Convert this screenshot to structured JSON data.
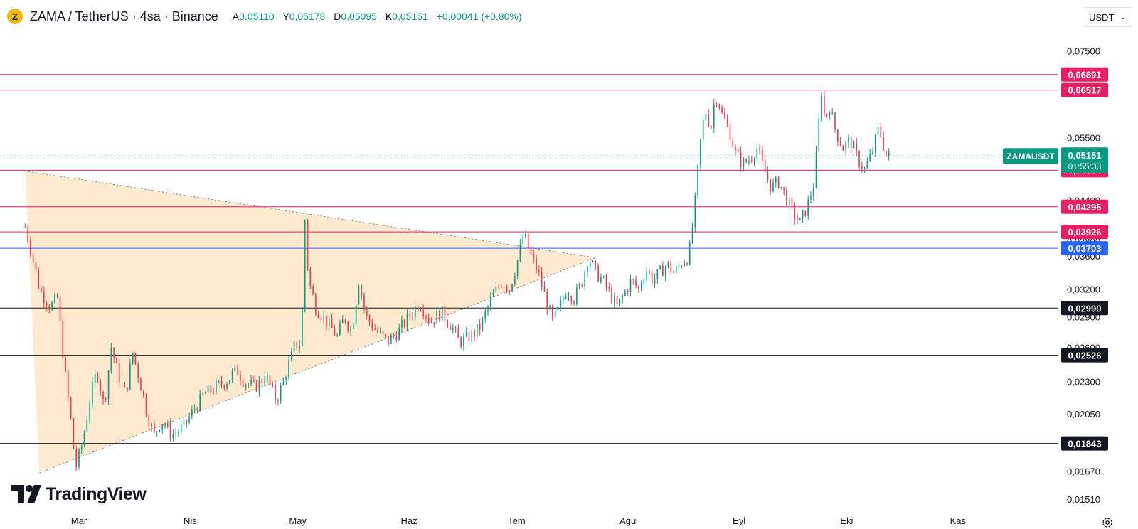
{
  "header": {
    "coin_icon": "Z",
    "title": "ZAMA / TetherUS · 4sa · Binance",
    "ohlc": [
      {
        "label": "A",
        "value": "0,05110"
      },
      {
        "label": "Y",
        "value": "0,05178"
      },
      {
        "label": "D",
        "value": "0,05095"
      },
      {
        "label": "K",
        "value": "0,05151"
      }
    ],
    "change": "+0,00041 (+0,80%)",
    "up_color": "#089981"
  },
  "currency_selector": {
    "value": "USDT",
    "icon": "chevron-down-icon"
  },
  "logo": {
    "text": "TradingView",
    "icon": "tradingview-logo-icon"
  },
  "settings": {
    "icon": "settings-gear-icon"
  },
  "chart_data": {
    "type": "candlestick",
    "symbol": "ZAMAUSDT",
    "interval": "4sa",
    "y_scale": "log",
    "ylim": [
      0.0148,
      0.08
    ],
    "y_ticks": [
      "0,07500",
      "0,05500",
      "0,04400",
      "0,03800",
      "0,03600",
      "0,03200",
      "0,02900",
      "0,02600",
      "0,02300",
      "0,02050",
      "0,01670",
      "0,01510"
    ],
    "x_ticks": [
      "Mar",
      "Nis",
      "May",
      "Haz",
      "Tem",
      "Ağu",
      "Eyl",
      "Eki",
      "Kas"
    ],
    "x_tick_dates": [
      "2026-03-01",
      "2026-04-01",
      "2026-05-01",
      "2026-06-01",
      "2026-07-01",
      "2026-08-01",
      "2026-09-01",
      "2026-10-01",
      "2026-11-01"
    ],
    "x_range": [
      "2026-02-07",
      "2026-11-29"
    ],
    "current_price": {
      "label": "ZAMAUSDT",
      "value": "0,05151",
      "countdown": "01:55:33",
      "price": 0.05151,
      "color": "#089981"
    },
    "horizontal_levels": [
      {
        "value": "0,06891",
        "price": 0.06891,
        "color": "#e91e63"
      },
      {
        "value": "0,06517",
        "price": 0.06517,
        "color": "#e91e63"
      },
      {
        "value": "0,04894",
        "price": 0.04894,
        "color": "#e91e63"
      },
      {
        "value": "0,04295",
        "price": 0.04295,
        "color": "#e91e63"
      },
      {
        "value": "0,03926",
        "price": 0.03926,
        "color": "#e91e63"
      },
      {
        "value": "0,03703",
        "price": 0.03703,
        "color": "#2962ff"
      },
      {
        "value": "0,02990",
        "price": 0.0299,
        "color": "#131722"
      },
      {
        "value": "0,02526",
        "price": 0.02526,
        "color": "#131722"
      },
      {
        "value": "0,01843",
        "price": 0.01843,
        "color": "#131722"
      }
    ],
    "triangle_pattern": {
      "points": [
        {
          "date": "2026-02-14",
          "price": 0.0488
        },
        {
          "date": "2026-07-23",
          "price": 0.0358
        },
        {
          "date": "2026-02-18",
          "price": 0.0166
        }
      ],
      "fill_color": "#ffe5c7"
    },
    "price_path": [
      [
        "2026-02-14",
        0.027
      ],
      [
        "2026-02-14",
        0.04
      ],
      [
        "2026-02-16",
        0.036
      ],
      [
        "2026-02-18",
        0.032
      ],
      [
        "2026-02-21",
        0.03
      ],
      [
        "2026-02-23",
        0.031
      ],
      [
        "2026-02-25",
        0.024
      ],
      [
        "2026-02-27",
        0.0195
      ],
      [
        "2026-02-28",
        0.0168
      ],
      [
        "2026-03-02",
        0.0185
      ],
      [
        "2026-03-04",
        0.0215
      ],
      [
        "2026-03-06",
        0.024
      ],
      [
        "2026-03-08",
        0.021
      ],
      [
        "2026-03-10",
        0.026
      ],
      [
        "2026-03-12",
        0.0235
      ],
      [
        "2026-03-14",
        0.022
      ],
      [
        "2026-03-16",
        0.0255
      ],
      [
        "2026-03-18",
        0.023
      ],
      [
        "2026-03-20",
        0.0205
      ],
      [
        "2026-03-22",
        0.019
      ],
      [
        "2026-03-24",
        0.02
      ],
      [
        "2026-03-27",
        0.019
      ],
      [
        "2026-03-30",
        0.0195
      ],
      [
        "2026-04-02",
        0.0208
      ],
      [
        "2026-04-05",
        0.022
      ],
      [
        "2026-04-08",
        0.0225
      ],
      [
        "2026-04-11",
        0.023
      ],
      [
        "2026-04-14",
        0.024
      ],
      [
        "2026-04-16",
        0.023
      ],
      [
        "2026-04-19",
        0.0225
      ],
      [
        "2026-04-22",
        0.0235
      ],
      [
        "2026-04-25",
        0.0215
      ],
      [
        "2026-04-27",
        0.023
      ],
      [
        "2026-04-30",
        0.026
      ],
      [
        "2026-05-02",
        0.0265
      ],
      [
        "2026-05-03",
        0.041
      ],
      [
        "2026-05-04",
        0.033
      ],
      [
        "2026-05-06",
        0.03
      ],
      [
        "2026-05-09",
        0.0285
      ],
      [
        "2026-05-12",
        0.027
      ],
      [
        "2026-05-14",
        0.029
      ],
      [
        "2026-05-16",
        0.0275
      ],
      [
        "2026-05-18",
        0.033
      ],
      [
        "2026-05-20",
        0.029
      ],
      [
        "2026-05-23",
        0.0275
      ],
      [
        "2026-05-26",
        0.0265
      ],
      [
        "2026-05-29",
        0.0275
      ],
      [
        "2026-06-01",
        0.029
      ],
      [
        "2026-06-04",
        0.0305
      ],
      [
        "2026-06-07",
        0.0285
      ],
      [
        "2026-06-10",
        0.0295
      ],
      [
        "2026-06-13",
        0.028
      ],
      [
        "2026-06-15",
        0.0265
      ],
      [
        "2026-06-18",
        0.027
      ],
      [
        "2026-06-21",
        0.028
      ],
      [
        "2026-06-24",
        0.031
      ],
      [
        "2026-06-27",
        0.033
      ],
      [
        "2026-06-29",
        0.032
      ],
      [
        "2026-07-01",
        0.035
      ],
      [
        "2026-07-03",
        0.039
      ],
      [
        "2026-07-05",
        0.036
      ],
      [
        "2026-07-07",
        0.034
      ],
      [
        "2026-07-09",
        0.031
      ],
      [
        "2026-07-11",
        0.0285
      ],
      [
        "2026-07-13",
        0.03
      ],
      [
        "2026-07-15",
        0.032
      ],
      [
        "2026-07-17",
        0.031
      ],
      [
        "2026-07-19",
        0.0325
      ],
      [
        "2026-07-21",
        0.036
      ],
      [
        "2026-07-23",
        0.034
      ],
      [
        "2026-07-25",
        0.033
      ],
      [
        "2026-07-27",
        0.0315
      ],
      [
        "2026-07-29",
        0.03
      ],
      [
        "2026-07-31",
        0.0315
      ],
      [
        "2026-08-02",
        0.033
      ],
      [
        "2026-08-04",
        0.032
      ],
      [
        "2026-08-06",
        0.0345
      ],
      [
        "2026-08-08",
        0.033
      ],
      [
        "2026-08-10",
        0.034
      ],
      [
        "2026-08-12",
        0.035
      ],
      [
        "2026-08-14",
        0.0338
      ],
      [
        "2026-08-16",
        0.0352
      ],
      [
        "2026-08-18",
        0.036
      ],
      [
        "2026-08-19",
        0.04
      ],
      [
        "2026-08-20",
        0.045
      ],
      [
        "2026-08-21",
        0.053
      ],
      [
        "2026-08-22",
        0.058
      ],
      [
        "2026-08-23",
        0.061
      ],
      [
        "2026-08-24",
        0.056
      ],
      [
        "2026-08-25",
        0.062
      ],
      [
        "2026-08-26",
        0.064
      ],
      [
        "2026-08-27",
        0.06
      ],
      [
        "2026-08-29",
        0.057
      ],
      [
        "2026-08-31",
        0.052
      ],
      [
        "2026-09-02",
        0.05
      ],
      [
        "2026-09-04",
        0.051
      ],
      [
        "2026-09-06",
        0.053
      ],
      [
        "2026-09-08",
        0.049
      ],
      [
        "2026-09-10",
        0.046
      ],
      [
        "2026-09-12",
        0.047
      ],
      [
        "2026-09-14",
        0.0445
      ],
      [
        "2026-09-16",
        0.042
      ],
      [
        "2026-09-18",
        0.0405
      ],
      [
        "2026-09-20",
        0.043
      ],
      [
        "2026-09-22",
        0.047
      ],
      [
        "2026-09-23",
        0.056
      ],
      [
        "2026-09-24",
        0.065
      ],
      [
        "2026-09-25",
        0.058
      ],
      [
        "2026-09-26",
        0.062
      ],
      [
        "2026-09-28",
        0.056
      ],
      [
        "2026-09-30",
        0.053
      ],
      [
        "2026-10-02",
        0.0545
      ],
      [
        "2026-10-04",
        0.051
      ],
      [
        "2026-10-06",
        0.049
      ],
      [
        "2026-10-08",
        0.052
      ],
      [
        "2026-10-10",
        0.057
      ],
      [
        "2026-10-12",
        0.0515
      ],
      [
        "2026-10-13",
        0.05151
      ]
    ]
  }
}
